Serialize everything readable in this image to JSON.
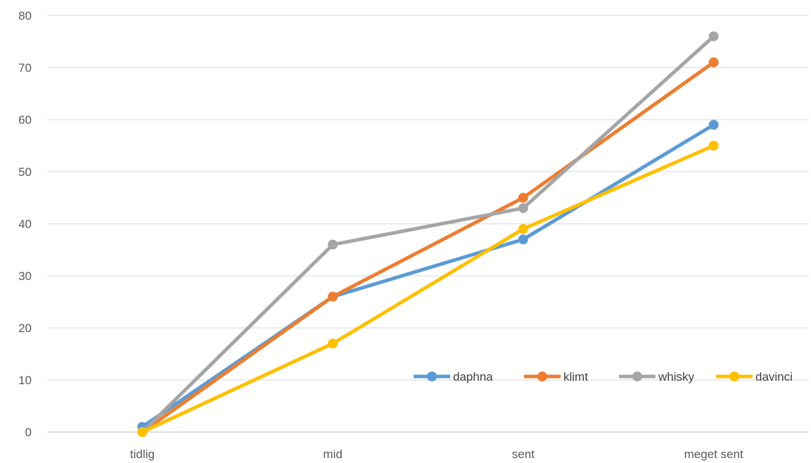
{
  "chart_data": {
    "type": "line",
    "title": "",
    "xlabel": "",
    "ylabel": "",
    "categories": [
      "tidlig",
      "mid",
      "sent",
      "meget sent"
    ],
    "ylim": [
      0,
      80
    ],
    "yticks": [
      0,
      10,
      20,
      30,
      40,
      50,
      60,
      70,
      80
    ],
    "grid": true,
    "legend_position": "bottom-right (inside plot)",
    "series": [
      {
        "name": "daphna",
        "color": "#5B9BD5",
        "values": [
          1,
          26,
          37,
          59
        ]
      },
      {
        "name": "klimt",
        "color": "#ED7D31",
        "values": [
          0,
          26,
          45,
          71
        ]
      },
      {
        "name": "whisky",
        "color": "#A5A5A5",
        "values": [
          0,
          36,
          43,
          76
        ]
      },
      {
        "name": "davinci",
        "color": "#FFC000",
        "values": [
          0,
          17,
          39,
          55
        ]
      }
    ]
  }
}
